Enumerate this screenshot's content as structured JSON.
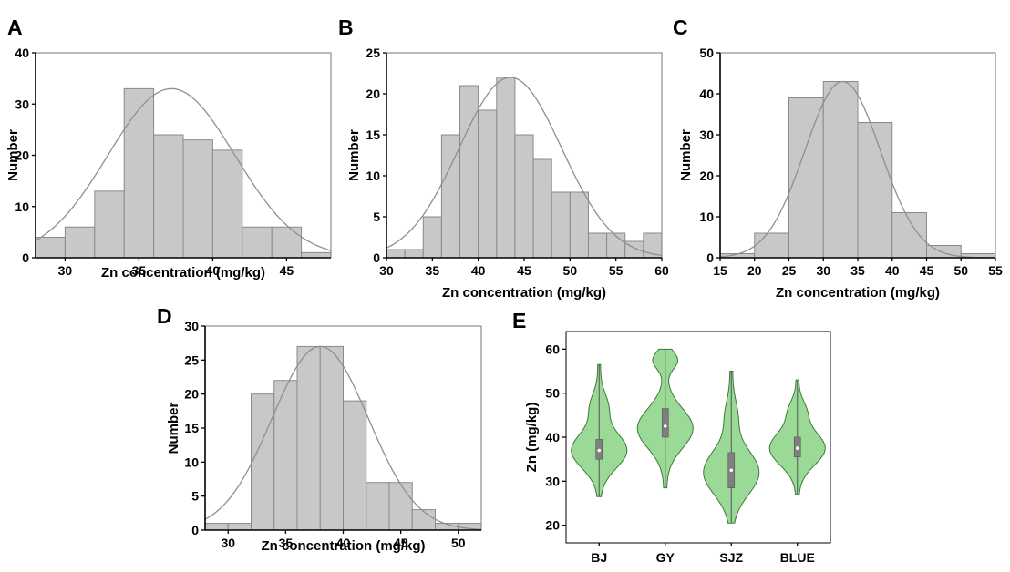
{
  "figure": {
    "background": "#ffffff"
  },
  "colors": {
    "bar_fill": "#c8c8c8",
    "bar_stroke": "#8a8a8a",
    "curve": "#8f8f8f",
    "violin_fill": "#9ad996",
    "violin_stroke": "#3d7a3a",
    "box_fill": "#7f7f7f",
    "median": "#ffffff",
    "axis": "#000000"
  },
  "chart_data": [
    {
      "panel": "A",
      "type": "bar",
      "xlabel": "Zn concentration (mg/kg)",
      "ylabel": "Number",
      "xlim": [
        28,
        48
      ],
      "ylim": [
        0,
        40
      ],
      "xticks": [
        30,
        35,
        40,
        45
      ],
      "yticks": [
        0,
        10,
        20,
        30,
        40
      ],
      "bin_edges": [
        28,
        30,
        32,
        34,
        36,
        38,
        40,
        42,
        44,
        46,
        48
      ],
      "values": [
        4,
        6,
        13,
        33,
        24,
        23,
        21,
        6,
        6,
        1
      ],
      "normal_fit": {
        "mean": 37.2,
        "peak": 33,
        "sd": 4.3
      }
    },
    {
      "panel": "B",
      "type": "bar",
      "xlabel": "Zn concentration (mg/kg)",
      "ylabel": "Number",
      "xlim": [
        30,
        60
      ],
      "ylim": [
        0,
        25
      ],
      "xticks": [
        30,
        35,
        40,
        45,
        50,
        55,
        60
      ],
      "yticks": [
        0,
        5,
        10,
        15,
        20,
        25
      ],
      "bin_edges": [
        30,
        32,
        34,
        36,
        38,
        40,
        42,
        44,
        46,
        48,
        50,
        52,
        54,
        56,
        58,
        60
      ],
      "values": [
        1,
        1,
        5,
        15,
        21,
        18,
        22,
        15,
        12,
        8,
        8,
        3,
        3,
        2,
        3
      ],
      "normal_fit": {
        "mean": 43.5,
        "peak": 22,
        "sd": 5.6
      }
    },
    {
      "panel": "C",
      "type": "bar",
      "xlabel": "Zn concentration (mg/kg)",
      "ylabel": "Number",
      "xlim": [
        15,
        55
      ],
      "ylim": [
        0,
        50
      ],
      "xticks": [
        15,
        20,
        25,
        30,
        35,
        40,
        45,
        50,
        55
      ],
      "yticks": [
        0,
        10,
        20,
        30,
        40,
        50
      ],
      "bin_edges": [
        15,
        20,
        25,
        30,
        35,
        40,
        45,
        50,
        55
      ],
      "values": [
        1,
        6,
        39,
        43,
        33,
        11,
        3,
        1
      ],
      "normal_fit": {
        "mean": 32.8,
        "peak": 43,
        "sd": 5.5
      }
    },
    {
      "panel": "D",
      "type": "bar",
      "xlabel": "Zn concentration (mg/kg)",
      "ylabel": "Number",
      "xlim": [
        28,
        52
      ],
      "ylim": [
        0,
        30
      ],
      "xticks": [
        30,
        35,
        40,
        45,
        50
      ],
      "yticks": [
        0,
        5,
        10,
        15,
        20,
        25,
        30
      ],
      "bin_edges": [
        28,
        30,
        32,
        34,
        36,
        38,
        40,
        42,
        44,
        46,
        48,
        50,
        52
      ],
      "values": [
        1,
        1,
        20,
        22,
        27,
        27,
        19,
        7,
        7,
        3,
        1,
        1
      ],
      "normal_fit": {
        "mean": 38.0,
        "peak": 27,
        "sd": 4.2
      }
    },
    {
      "panel": "E",
      "type": "violin",
      "ylabel": "Zn (mg/kg)",
      "ylim": [
        16,
        64
      ],
      "yticks": [
        20,
        30,
        40,
        50,
        60
      ],
      "categories": [
        "BJ",
        "GY",
        "SJZ",
        "BLUE"
      ],
      "groups": [
        {
          "name": "BJ",
          "min": 26.5,
          "q1": 35.0,
          "median": 37.0,
          "q3": 39.5,
          "max": 56.5,
          "modes": [
            {
              "c": 37.0,
              "s": 4.0,
              "w": 1.0
            },
            {
              "c": 47.0,
              "s": 3.0,
              "w": 0.28
            }
          ]
        },
        {
          "name": "GY",
          "min": 28.5,
          "q1": 40.0,
          "median": 42.5,
          "q3": 46.5,
          "max": 60.0,
          "modes": [
            {
              "c": 42.0,
              "s": 4.5,
              "w": 1.0
            },
            {
              "c": 57.5,
              "s": 2.0,
              "w": 0.42
            }
          ]
        },
        {
          "name": "SJZ",
          "min": 20.5,
          "q1": 28.5,
          "median": 32.5,
          "q3": 36.5,
          "max": 55.0,
          "modes": [
            {
              "c": 32.0,
              "s": 5.0,
              "w": 1.0
            },
            {
              "c": 45.0,
              "s": 3.5,
              "w": 0.18
            }
          ]
        },
        {
          "name": "BLUE",
          "min": 27.0,
          "q1": 35.5,
          "median": 37.5,
          "q3": 40.0,
          "max": 53.0,
          "modes": [
            {
              "c": 37.5,
              "s": 3.8,
              "w": 1.0
            },
            {
              "c": 46.0,
              "s": 2.5,
              "w": 0.25
            }
          ]
        }
      ]
    }
  ]
}
